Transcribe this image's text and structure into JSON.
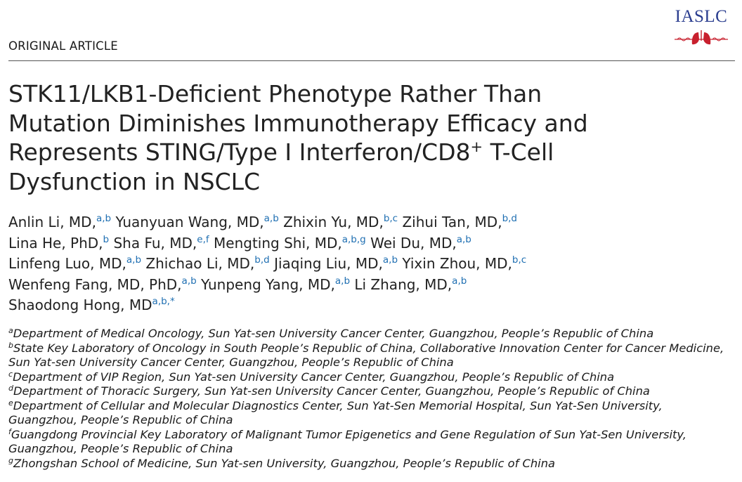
{
  "logo": {
    "text": "IASLC"
  },
  "article_type": "ORIGINAL ARTICLE",
  "title": {
    "line1": "STK11/LKB1-Deficient Phenotype Rather Than",
    "line2": "Mutation Diminishes Immunotherapy Efficacy and",
    "line3_pre": "Represents STING/Type I Interferon/CD8",
    "line3_sup": "+",
    "line3_post": " T-Cell",
    "line4": "Dysfunction in NSCLC"
  },
  "authors": [
    {
      "name": "Anlin Li, MD,",
      "sup": "a,b"
    },
    {
      "name": "Yuanyuan Wang, MD,",
      "sup": "a,b"
    },
    {
      "name": "Zhixin Yu, MD,",
      "sup": "b,c"
    },
    {
      "name": "Zihui Tan, MD,",
      "sup": "b,d"
    },
    {
      "name": "Lina He, PhD,",
      "sup": "b"
    },
    {
      "name": "Sha Fu, MD,",
      "sup": "e,f"
    },
    {
      "name": "Mengting Shi, MD,",
      "sup": "a,b,g"
    },
    {
      "name": "Wei Du, MD,",
      "sup": "a,b"
    },
    {
      "name": "Linfeng Luo, MD,",
      "sup": "a,b"
    },
    {
      "name": "Zhichao Li, MD,",
      "sup": "b,d"
    },
    {
      "name": "Jiaqing Liu, MD,",
      "sup": "a,b"
    },
    {
      "name": "Yixin Zhou, MD,",
      "sup": "b,c"
    },
    {
      "name": "Wenfeng Fang, MD, PhD,",
      "sup": "a,b"
    },
    {
      "name": "Yunpeng Yang, MD,",
      "sup": "a,b"
    },
    {
      "name": "Li Zhang, MD,",
      "sup": "a,b"
    },
    {
      "name": "Shaodong Hong, MD",
      "sup": "a,b,*"
    }
  ],
  "affiliations": [
    {
      "label": "a",
      "text": "Department of Medical Oncology, Sun Yat-sen University Cancer Center, Guangzhou, People’s Republic of China"
    },
    {
      "label": "b",
      "text": "State Key Laboratory of Oncology in South People’s Republic of China, Collaborative Innovation Center for Cancer Medicine, Sun Yat-sen University Cancer Center, Guangzhou, People’s Republic of China"
    },
    {
      "label": "c",
      "text": "Department of VIP Region, Sun Yat-sen University Cancer Center, Guangzhou, People’s Republic of China"
    },
    {
      "label": "d",
      "text": "Department of Thoracic Surgery, Sun Yat-sen University Cancer Center, Guangzhou, People’s Republic of China"
    },
    {
      "label": "e",
      "text": "Department of Cellular and Molecular Diagnostics Center, Sun Yat-Sen Memorial Hospital, Sun Yat-Sen University, Guangzhou, People’s Republic of China"
    },
    {
      "label": "f",
      "text": "Guangdong Provincial Key Laboratory of Malignant Tumor Epigenetics and Gene Regulation of Sun Yat-Sen University, Guangzhou, People’s Republic of China"
    },
    {
      "label": "g",
      "text": "Zhongshan School of Medicine, Sun Yat-sen University, Guangzhou, People’s Republic of China"
    }
  ],
  "colors": {
    "accent": "#1f6fb2",
    "logo_blue": "#2a3d8f",
    "logo_red": "#c8202e"
  }
}
